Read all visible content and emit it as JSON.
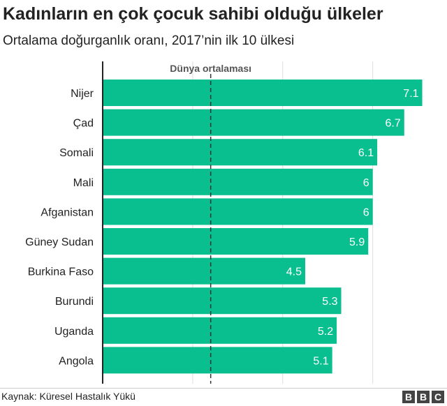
{
  "header": {
    "title": "Kadınların en çok çocuk sahibi olduğu ülkeler",
    "subtitle": "Ortalama doğurganlık oranı, 2017’nin ilk 10 ülkesi"
  },
  "chart_data": {
    "type": "bar",
    "orientation": "horizontal",
    "categories": [
      "Nijer",
      "Çad",
      "Somali",
      "Mali",
      "Afganistan",
      "Güney Sudan",
      "Burkina Faso",
      "Burundi",
      "Uganda",
      "Angola"
    ],
    "values": [
      7.1,
      6.7,
      6.1,
      6,
      6,
      5.9,
      4.5,
      5.3,
      5.2,
      5.1
    ],
    "value_labels": [
      "7.1",
      "6.7",
      "6.1",
      "6",
      "6",
      "5.9",
      "4.5",
      "5.3",
      "5.2",
      "5.1"
    ],
    "xlim": [
      0,
      7.2
    ],
    "x_gridlines": [
      2,
      4,
      6
    ],
    "reference_line": {
      "label": "Dünya ortalaması",
      "value": 2.4
    },
    "bar_color": "#0abf8f",
    "grid": true,
    "legend": "none"
  },
  "footer": {
    "source": "Kaynak: Küresel Hastalık Yükü",
    "logo_letters": [
      "B",
      "B",
      "C"
    ]
  }
}
